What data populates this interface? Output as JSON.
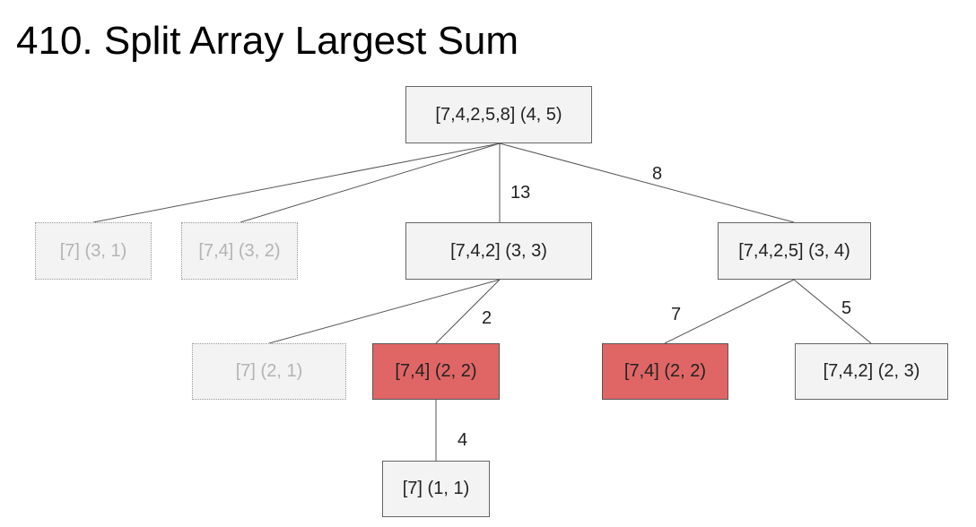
{
  "title": "410. Split Array Largest Sum",
  "colors": {
    "node_fill": "#f3f3f3",
    "node_border": "#666666",
    "pruned_text": "#b3b3b3",
    "highlight_fill": "#e06666",
    "edge": "#555555"
  },
  "nodes": {
    "root": "[7,4,2,5,8] (4, 5)",
    "n31": "[7] (3, 1)",
    "n32": "[7,4] (3, 2)",
    "n33": "[7,4,2] (3, 3)",
    "n34": "[7,4,2,5] (3, 4)",
    "n21": "[7] (2, 1)",
    "n22a": "[7,4] (2, 2)",
    "n22b": "[7,4] (2, 2)",
    "n23": "[7,4,2] (2, 3)",
    "n11": "[7] (1, 1)"
  },
  "edge_labels": {
    "root_n33": "13",
    "root_n34": "8",
    "n33_n22a": "2",
    "n34_n22b": "7",
    "n34_n23": "5",
    "n22a_n11": "4"
  }
}
